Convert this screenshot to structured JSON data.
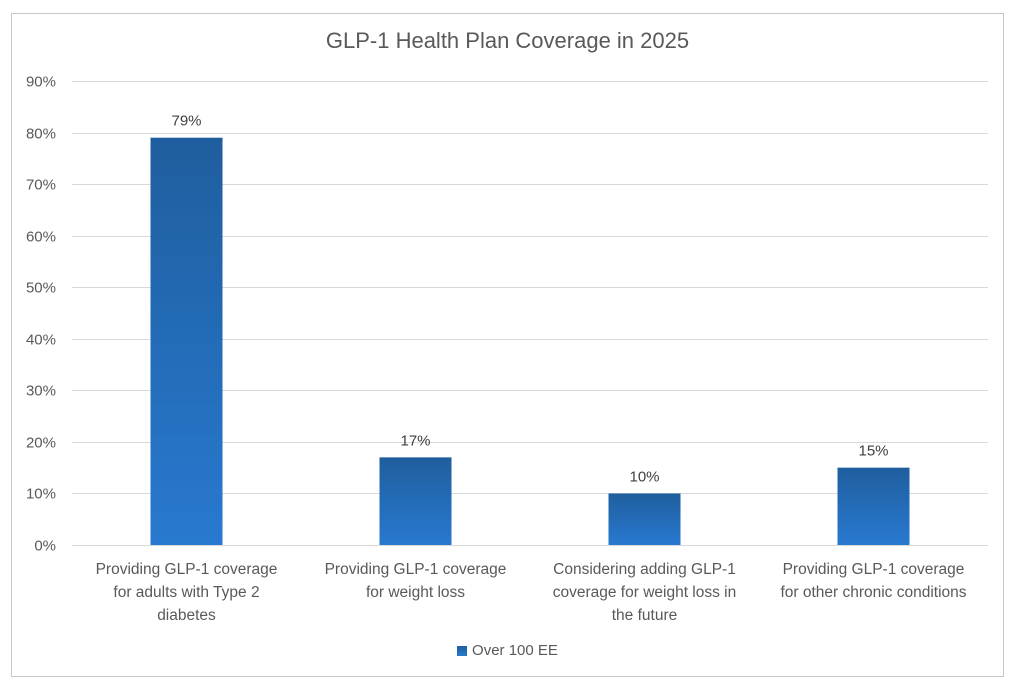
{
  "chart_data": {
    "type": "bar",
    "title": "GLP-1 Health Plan Coverage in 2025",
    "xlabel": "",
    "ylabel": "",
    "categories": [
      [
        "Providing GLP-1 coverage",
        "for adults with Type 2",
        "diabetes"
      ],
      [
        "Providing GLP-1 coverage",
        "for weight loss"
      ],
      [
        "Considering adding GLP-1",
        "coverage for weight loss in",
        "the future"
      ],
      [
        "Providing GLP-1 coverage",
        "for other chronic conditions"
      ]
    ],
    "series": [
      {
        "name": "Over 100 EE",
        "values": [
          79,
          17,
          10,
          15
        ],
        "data_labels": [
          "79%",
          "17%",
          "10%",
          "15%"
        ],
        "color_top": "#1F5E9E",
        "color_bottom": "#2879D0"
      }
    ],
    "ylim": [
      0,
      90
    ],
    "yticks": [
      0,
      10,
      20,
      30,
      40,
      50,
      60,
      70,
      80,
      90
    ],
    "ytick_labels": [
      "0%",
      "10%",
      "20%",
      "30%",
      "40%",
      "50%",
      "60%",
      "70%",
      "80%",
      "90%"
    ],
    "grid": true,
    "legend_position": "bottom",
    "gridline_color": "#d9d9d9"
  }
}
